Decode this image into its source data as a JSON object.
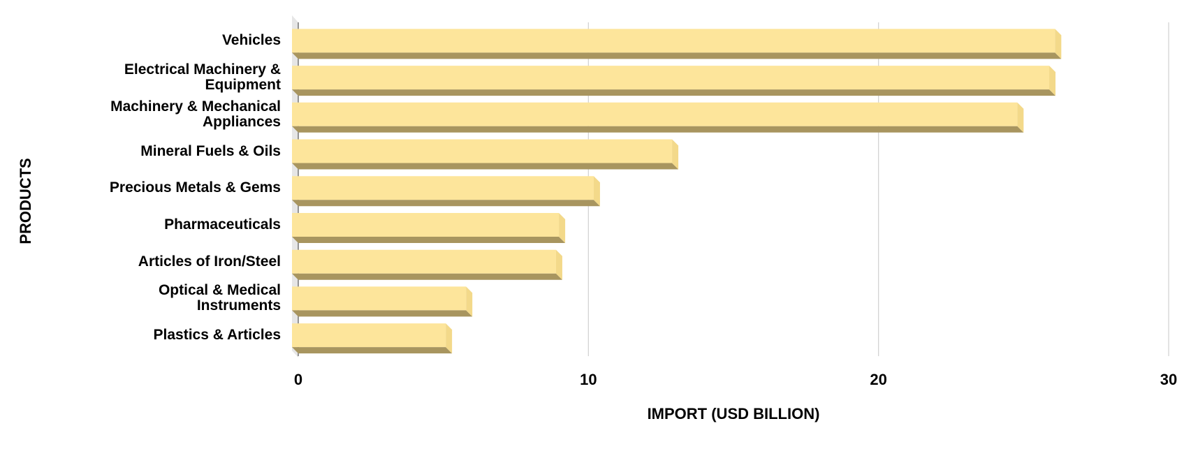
{
  "chart_data": {
    "type": "bar3d",
    "orientation": "horizontal",
    "x_label": "IMPORT (USD BILLION)",
    "y_label": "PRODUCTS",
    "categories": [
      "Vehicles",
      "Electrical Machinery & Equipment",
      "Machinery & Mechanical Appliances",
      "Mineral Fuels & Oils",
      "Precious Metals & Gems",
      "Pharmaceuticals",
      "Articles of Iron/Steel",
      "Optical & Medical Instruments",
      "Plastics & Articles"
    ],
    "values": [
      26.3,
      26.1,
      25.0,
      13.1,
      10.4,
      9.2,
      9.1,
      6.0,
      5.3
    ],
    "color": "#fde59b",
    "xlim": [
      0,
      30
    ],
    "xticks": [
      0,
      10,
      20,
      30
    ],
    "grid": true
  }
}
